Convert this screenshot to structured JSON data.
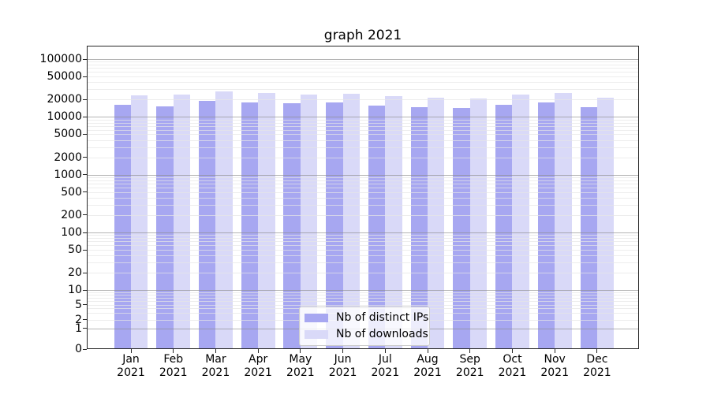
{
  "title": "graph 2021",
  "chart_data": {
    "type": "bar",
    "title": "graph 2021",
    "categories": [
      "Jan",
      "Feb",
      "Mar",
      "Apr",
      "May",
      "Jun",
      "Jul",
      "Aug",
      "Sep",
      "Oct",
      "Nov",
      "Dec"
    ],
    "category_year": "2021",
    "series": [
      {
        "name": "Nb of distinct IPs",
        "color": "#a7a7f1",
        "values": [
          16000,
          15400,
          18900,
          18000,
          17300,
          17700,
          15700,
          14800,
          14400,
          16300,
          17700,
          14900
        ]
      },
      {
        "name": "Nb of downloads",
        "color": "#d9d9f8",
        "values": [
          23400,
          24200,
          27700,
          25800,
          24200,
          25000,
          22700,
          21500,
          20800,
          24200,
          25800,
          21700
        ]
      }
    ],
    "yscale": "symlog",
    "yticks": [
      100000,
      50000,
      20000,
      10000,
      5000,
      2000,
      1000,
      500,
      200,
      100,
      50,
      20,
      10,
      5,
      2,
      1,
      0
    ],
    "ylim": [
      0,
      170000
    ],
    "xlabel": "",
    "ylabel": "",
    "grid": "both",
    "legend_position": "lower center"
  },
  "colors": {
    "major_grid": "rgba(140,140,140,0.65)",
    "minor_grid": "rgba(230,230,230,0.7)",
    "spine": "#262626"
  }
}
